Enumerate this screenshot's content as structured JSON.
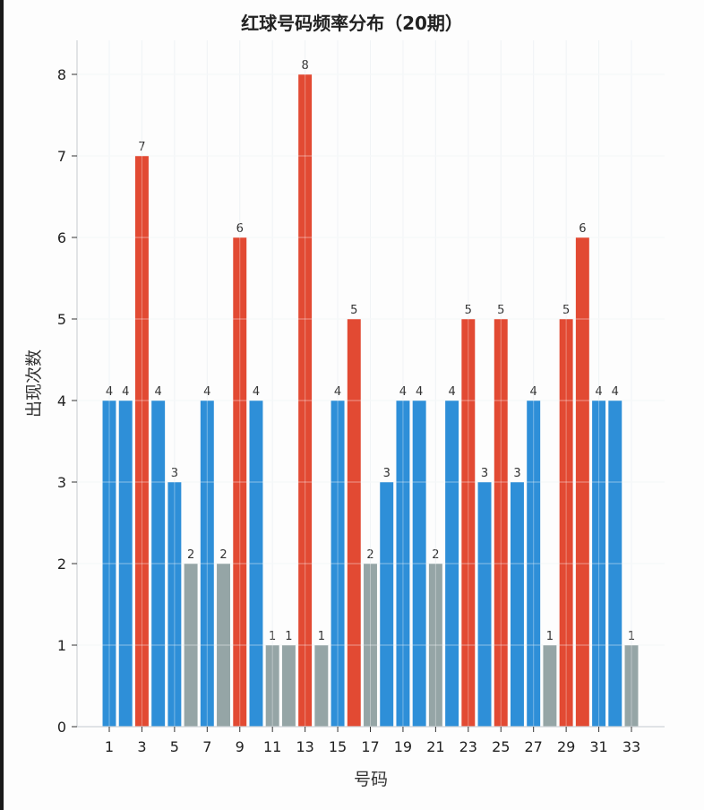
{
  "chart_data": {
    "type": "bar",
    "title": "红球号码频率分布（20期）",
    "xlabel": "号码",
    "ylabel": "出现次数",
    "categories": [
      1,
      2,
      3,
      4,
      5,
      6,
      7,
      8,
      9,
      10,
      11,
      12,
      13,
      14,
      15,
      16,
      17,
      18,
      19,
      20,
      21,
      22,
      23,
      24,
      25,
      26,
      27,
      28,
      29,
      30,
      31,
      32,
      33
    ],
    "values": [
      4,
      4,
      7,
      4,
      3,
      2,
      4,
      2,
      6,
      4,
      1,
      1,
      8,
      1,
      4,
      5,
      2,
      3,
      4,
      4,
      2,
      4,
      5,
      3,
      5,
      3,
      4,
      1,
      5,
      6,
      4,
      4,
      1
    ],
    "xticks": [
      1,
      3,
      5,
      7,
      9,
      11,
      13,
      15,
      17,
      19,
      21,
      23,
      25,
      27,
      29,
      31,
      33
    ],
    "yticks": [
      0,
      1,
      2,
      3,
      4,
      5,
      6,
      7,
      8
    ],
    "ylim": [
      0,
      8.4
    ],
    "grid": true,
    "legend": "none",
    "color_rules": [
      {
        "range": "value >= 5",
        "color": "#e24a33",
        "meaning": "hot"
      },
      {
        "range": "3 <= value <= 4",
        "color": "#2e8fd8",
        "meaning": "normal"
      },
      {
        "range": "value <= 2",
        "color": "#95a5a6",
        "meaning": "cold"
      }
    ],
    "data_labels": true
  }
}
